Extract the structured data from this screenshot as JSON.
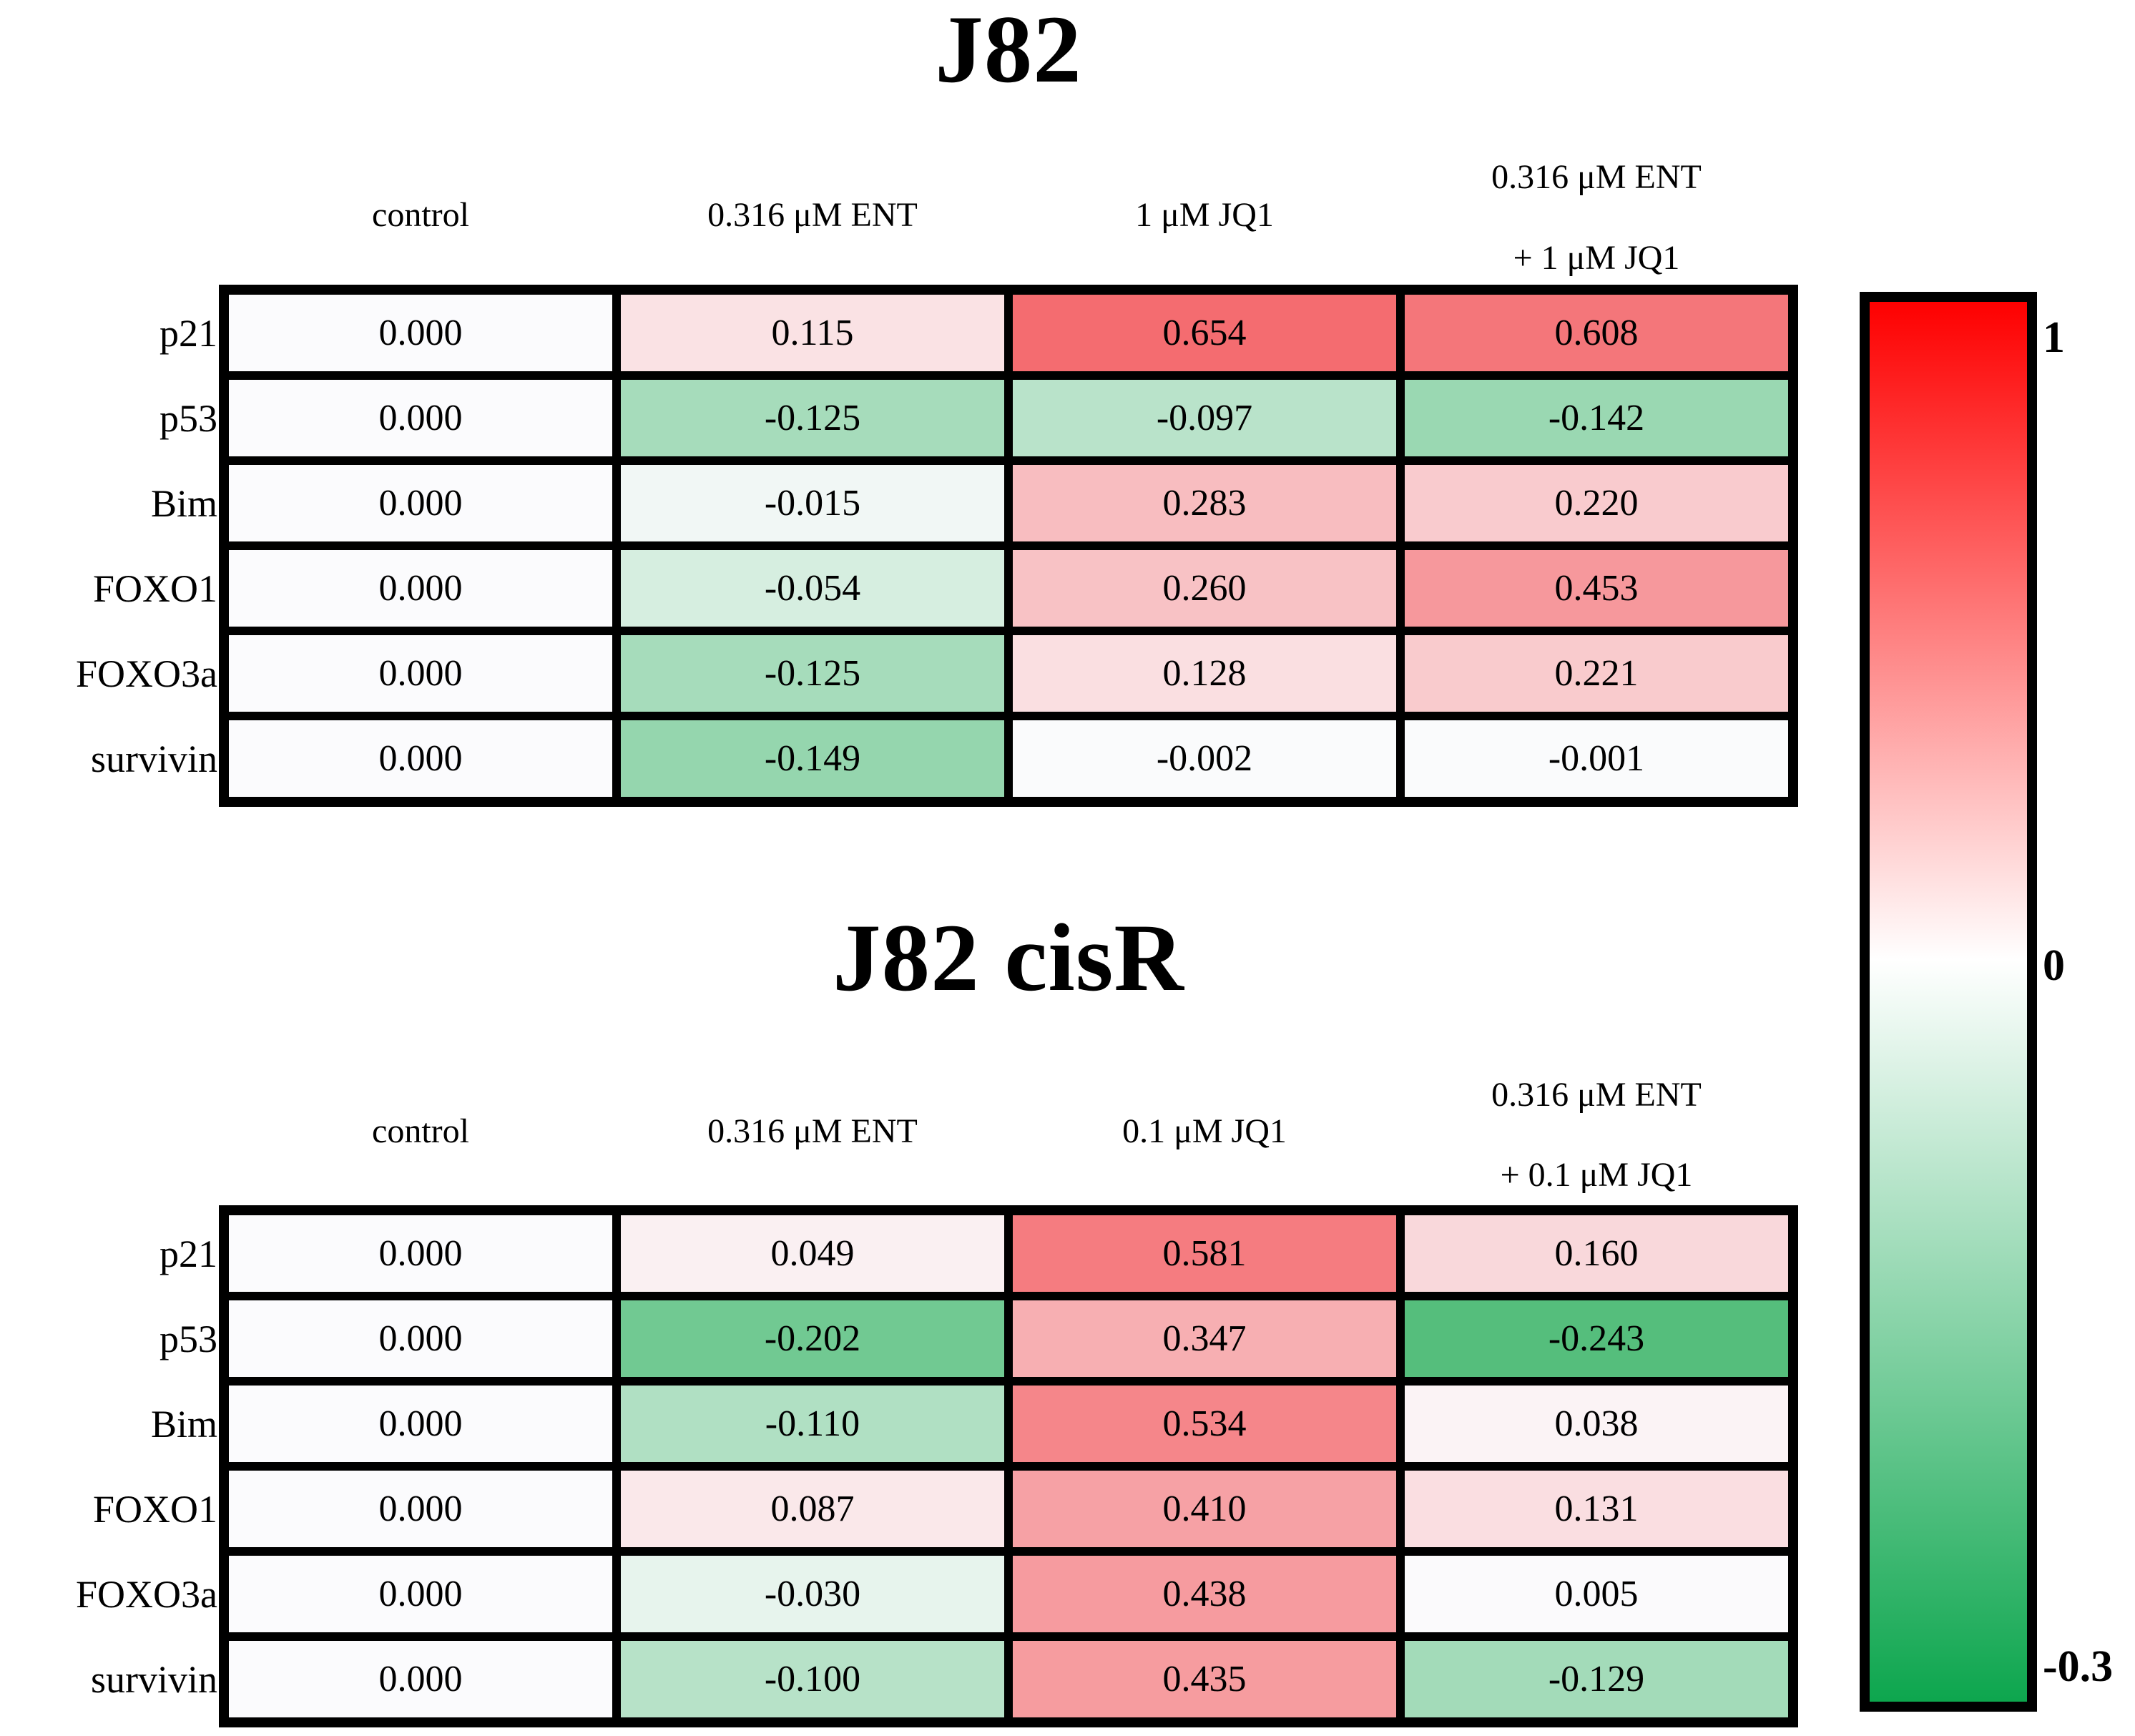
{
  "chart_data": [
    {
      "type": "heatmap",
      "title": "J82",
      "columns": [
        "control",
        "0.316 μM ENT",
        "1 μM JQ1",
        "0.316 μM ENT + 1 μM JQ1"
      ],
      "columns_display": [
        [
          "control"
        ],
        [
          "0.316 μM ENT"
        ],
        [
          "1 μM JQ1"
        ],
        [
          "0.316 μM ENT",
          "+ 1 μM JQ1"
        ]
      ],
      "row_labels": [
        "p21",
        "p53",
        "Bim",
        "FOXO1",
        "FOXO3a",
        "survivin"
      ],
      "values": [
        [
          0.0,
          0.115,
          0.654,
          0.608
        ],
        [
          0.0,
          -0.125,
          -0.097,
          -0.142
        ],
        [
          0.0,
          -0.015,
          0.283,
          0.22
        ],
        [
          0.0,
          -0.054,
          0.26,
          0.453
        ],
        [
          0.0,
          -0.125,
          0.128,
          0.221
        ],
        [
          0.0,
          -0.149,
          -0.002,
          -0.001
        ]
      ],
      "value_decimals": 3,
      "color_scale": {
        "min": -0.3,
        "max": 1,
        "zero_color": "white",
        "positive": "red",
        "negative": "green"
      }
    },
    {
      "type": "heatmap",
      "title": "J82 cisR",
      "columns": [
        "control",
        "0.316 μM ENT",
        "0.1 μM JQ1",
        "0.316 μM ENT + 0.1 μM JQ1"
      ],
      "columns_display": [
        [
          "control"
        ],
        [
          "0.316 μM ENT"
        ],
        [
          "0.1 μM JQ1"
        ],
        [
          "0.316 μM ENT",
          "+ 0.1 μM JQ1"
        ]
      ],
      "row_labels": [
        "p21",
        "p53",
        "Bim",
        "FOXO1",
        "FOXO3a",
        "survivin"
      ],
      "values": [
        [
          0.0,
          0.049,
          0.581,
          0.16
        ],
        [
          0.0,
          -0.202,
          0.347,
          -0.243
        ],
        [
          0.0,
          -0.11,
          0.534,
          0.038
        ],
        [
          0.0,
          0.087,
          0.41,
          0.131
        ],
        [
          0.0,
          -0.03,
          0.438,
          0.005
        ],
        [
          0.0,
          -0.1,
          0.435,
          -0.129
        ]
      ],
      "value_decimals": 3,
      "color_scale": {
        "min": -0.3,
        "max": 1,
        "zero_color": "white",
        "positive": "red",
        "negative": "green"
      }
    }
  ],
  "colorbar": {
    "tick_labels": [
      "1",
      "0",
      "-0.3"
    ],
    "gradient_top_color": "#fe0000",
    "gradient_mid_color": "#ffffff",
    "gradient_bottom_color": "#0da64e",
    "white_stop_percent": 47
  },
  "cell_colormap": {
    "base_white": "#fbfbfd",
    "red_end": "#f02026",
    "green_end": "#2eb05e",
    "pos_max": 1.0,
    "neg_min": -0.3
  }
}
